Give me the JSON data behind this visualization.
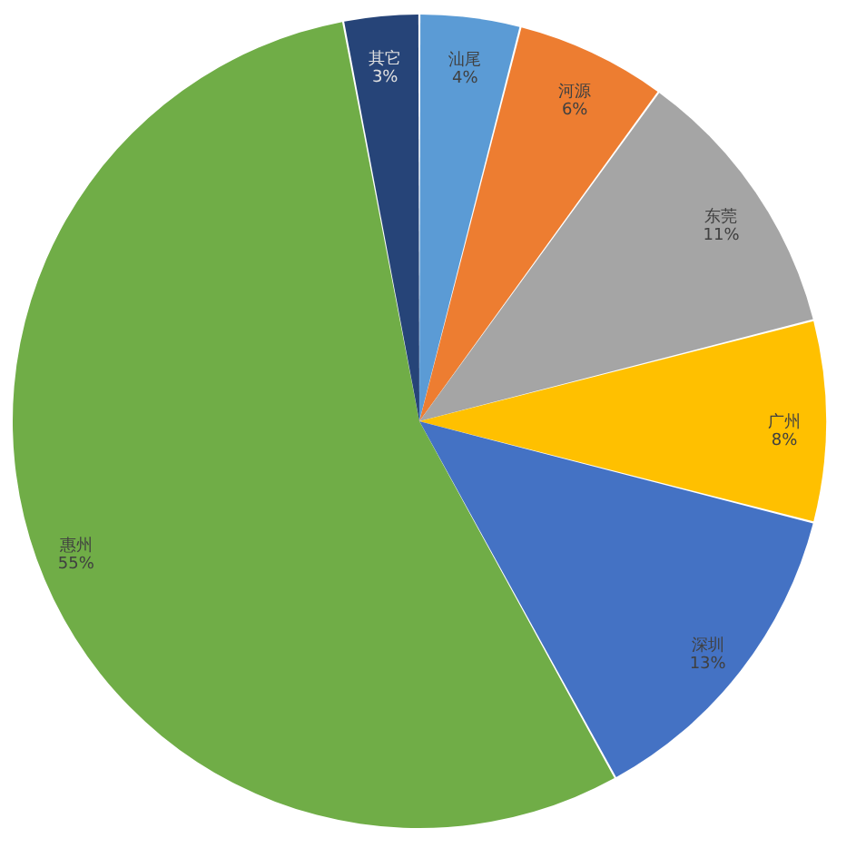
{
  "chart_data": {
    "type": "pie",
    "categories": [
      "汕尾",
      "河源",
      "东莞",
      "广州",
      "深圳",
      "惠州",
      "其它"
    ],
    "values": [
      4,
      6,
      11,
      8,
      13,
      55,
      3
    ],
    "colors": [
      "#5b9bd5",
      "#ed7d31",
      "#a5a5a5",
      "#ffc000",
      "#4472c4",
      "#70ad47",
      "#264478"
    ],
    "value_labels": [
      "4%",
      "6%",
      "11%",
      "8%",
      "13%",
      "55%",
      "3%"
    ]
  }
}
